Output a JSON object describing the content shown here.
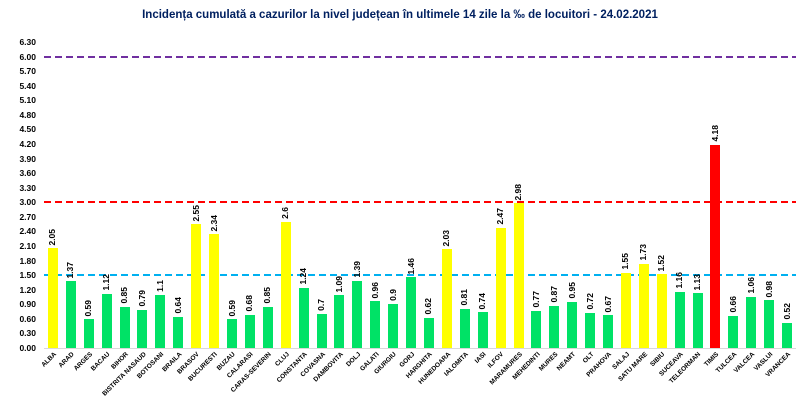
{
  "title": "Incidența cumulată a cazurilor la nivel județean în ultimele 14 zile   la ‰ de locuitori  - 24.02.2021",
  "title_color": "#002060",
  "colors": {
    "yellow": "#FFFF00",
    "green": "#00E266",
    "red": "#FF0000"
  },
  "y_axis": {
    "min": 0.0,
    "max": 6.3,
    "step": 0.3,
    "tick_labels": [
      "6.30",
      "6.00",
      "5.70",
      "5.40",
      "5.10",
      "4.80",
      "4.50",
      "4.20",
      "3.90",
      "3.60",
      "3.30",
      "3.00",
      "2.70",
      "2.40",
      "2.10",
      "1.80",
      "1.50",
      "1.20",
      "0.90",
      "0.60",
      "0.30",
      "0.00"
    ]
  },
  "thresholds": [
    {
      "value": 6.0,
      "color": "#7030A0",
      "name": "upper-limit-line"
    },
    {
      "value": 3.0,
      "color": "#FF0000",
      "name": "red-alert-line"
    },
    {
      "value": 1.5,
      "color": "#00B0F0",
      "name": "yellow-alert-line"
    }
  ],
  "chart_data": {
    "type": "bar",
    "title": "Incidența cumulată a cazurilor la nivel județean în ultimele 14 zile   la ‰ de locuitori  - 24.02.2021",
    "xlabel": "",
    "ylabel": "",
    "ylim": [
      0,
      6.3
    ],
    "grid": false,
    "legend": false,
    "categories": [
      "ALBA",
      "ARAD",
      "ARGES",
      "BACAU",
      "BIHOR",
      "BISTRITA NASAUD",
      "BOTOSANI",
      "BRAILA",
      "BRASOV",
      "BUCURESTI",
      "BUZAU",
      "CALARASI",
      "CARAS-SEVERIN",
      "CLUJ",
      "CONSTANTA",
      "COVASNA",
      "DAMBOVITA",
      "DOLJ",
      "GALATI",
      "GIURGIU",
      "GORJ",
      "HARGHITA",
      "HUNEDOARA",
      "IALOMITA",
      "IASI",
      "ILFOV",
      "MARAMURES",
      "MEHEDINTI",
      "MURES",
      "NEAMT",
      "OLT",
      "PRAHOVA",
      "SALAJ",
      "SATU MARE",
      "SIBIU",
      "SUCEAVA",
      "TELEORMAN",
      "TIMIS",
      "TULCEA",
      "VALCEA",
      "VASLUI",
      "VRANCEA"
    ],
    "values": [
      2.05,
      1.37,
      0.59,
      1.12,
      0.85,
      0.79,
      1.1,
      0.64,
      2.55,
      2.34,
      0.59,
      0.68,
      0.85,
      2.6,
      1.24,
      0.7,
      1.09,
      1.39,
      0.96,
      0.9,
      1.46,
      0.62,
      2.03,
      0.81,
      0.74,
      2.47,
      2.98,
      0.77,
      0.87,
      0.95,
      0.72,
      0.67,
      1.55,
      1.73,
      1.52,
      1.16,
      1.13,
      4.18,
      0.66,
      1.06,
      0.98,
      0.52
    ],
    "value_labels": [
      "2.05",
      "1.37",
      "0.59",
      "1.12",
      "0.85",
      "0.79",
      "1.1",
      "0.64",
      "2.55",
      "2.34",
      "0.59",
      "0.68",
      "0.85",
      "2.6",
      "1.24",
      "0.7",
      "1.09",
      "1.39",
      "0.96",
      "0.9",
      "1.46",
      "0.62",
      "2.03",
      "0.81",
      "0.74",
      "2.47",
      "2.98",
      "0.77",
      "0.87",
      "0.95",
      "0.72",
      "0.67",
      "1.55",
      "1.73",
      "1.52",
      "1.16",
      "1.13",
      "4.18",
      "0.66",
      "1.06",
      "0.98",
      "0.52"
    ],
    "bar_colors": [
      "yellow",
      "green",
      "green",
      "green",
      "green",
      "green",
      "green",
      "green",
      "yellow",
      "yellow",
      "green",
      "green",
      "green",
      "yellow",
      "green",
      "green",
      "green",
      "green",
      "green",
      "green",
      "green",
      "green",
      "yellow",
      "green",
      "green",
      "yellow",
      "yellow",
      "green",
      "green",
      "green",
      "green",
      "green",
      "yellow",
      "yellow",
      "yellow",
      "green",
      "green",
      "red",
      "green",
      "green",
      "green",
      "green"
    ]
  }
}
